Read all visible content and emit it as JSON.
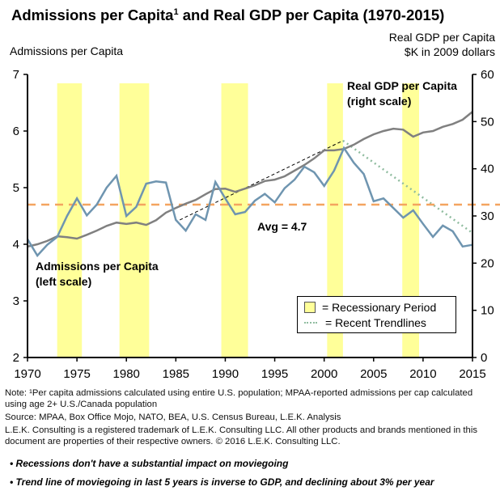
{
  "header": {
    "title_main": "Admissions per Capita",
    "title_sup": "1",
    "title_rest": " and Real GDP per Capita (1970-2015)",
    "left_axis_label": "Admissions per Capita",
    "right_axis_label_line1": "Real GDP per Capita",
    "right_axis_label_line2": "$K in 2009 dollars"
  },
  "chart_data": {
    "type": "line",
    "title": "Admissions per Capita1 and Real GDP per Capita (1970-2015)",
    "xlabel": "",
    "ylabel": "Admissions per Capita",
    "y2label": "Real GDP per Capita, $K in 2009 dollars",
    "xlim": [
      1970,
      2015
    ],
    "ylim": [
      2,
      7
    ],
    "y2lim": [
      0,
      60
    ],
    "x_ticks": [
      1970,
      1975,
      1980,
      1985,
      1990,
      1995,
      2000,
      2005,
      2010,
      2015
    ],
    "y_ticks": [
      2,
      3,
      4,
      5,
      6,
      7
    ],
    "y2_ticks": [
      0,
      10,
      20,
      30,
      40,
      50,
      60
    ],
    "grid": false,
    "x": [
      1970,
      1971,
      1972,
      1973,
      1974,
      1975,
      1976,
      1977,
      1978,
      1979,
      1980,
      1981,
      1982,
      1983,
      1984,
      1985,
      1986,
      1987,
      1988,
      1989,
      1990,
      1991,
      1992,
      1993,
      1994,
      1995,
      1996,
      1997,
      1998,
      1999,
      2000,
      2001,
      2002,
      2003,
      2004,
      2005,
      2006,
      2007,
      2008,
      2009,
      2010,
      2011,
      2012,
      2013,
      2014,
      2015
    ],
    "series": [
      {
        "name": "Admissions per Capita",
        "axis": "left",
        "color": "#6f95b0",
        "values": [
          4.09,
          3.8,
          3.99,
          4.13,
          4.5,
          4.81,
          4.51,
          4.7,
          5.0,
          5.21,
          4.5,
          4.66,
          5.07,
          5.11,
          5.09,
          4.43,
          4.24,
          4.53,
          4.43,
          5.1,
          4.81,
          4.53,
          4.57,
          4.77,
          4.89,
          4.74,
          4.99,
          5.14,
          5.37,
          5.27,
          5.03,
          5.3,
          5.7,
          5.44,
          5.24,
          4.76,
          4.81,
          4.64,
          4.47,
          4.6,
          4.36,
          4.13,
          4.33,
          4.23,
          3.96,
          3.99
        ]
      },
      {
        "name": "Real GDP per Capita",
        "axis": "right",
        "color": "#808080",
        "values": [
          23.5,
          24.0,
          24.7,
          25.7,
          25.5,
          25.2,
          26.0,
          26.9,
          27.9,
          28.6,
          28.3,
          28.6,
          28.1,
          29.1,
          30.7,
          31.7,
          32.6,
          33.4,
          34.6,
          35.7,
          35.8,
          35.1,
          35.8,
          36.5,
          37.4,
          37.7,
          38.4,
          39.6,
          40.8,
          42.2,
          43.9,
          43.9,
          44.2,
          45.1,
          46.3,
          47.3,
          48.0,
          48.5,
          48.3,
          46.8,
          47.7,
          48.0,
          48.9,
          49.5,
          50.4,
          52.1
        ]
      }
    ],
    "average_line": {
      "value": 4.7,
      "axis": "left",
      "color": "#f4a460",
      "label": "Avg = 4.7"
    },
    "trendlines": [
      {
        "name": "Earlier trendline",
        "axis": "left",
        "style": "dashed",
        "color": "#000000",
        "from": [
          1985.4,
          4.43
        ],
        "to": [
          2001.9,
          5.83
        ]
      },
      {
        "name": "Recent Trendlines",
        "axis": "left",
        "style": "dotted",
        "color": "#8fbc9f",
        "from": [
          2001.9,
          5.83
        ],
        "to": [
          2015,
          4.2
        ]
      }
    ],
    "recessions": [
      [
        1973.0,
        1975.5
      ],
      [
        1979.3,
        1982.3
      ],
      [
        1989.6,
        1992.3
      ],
      [
        2000.3,
        2001.9
      ],
      [
        2007.9,
        2009.6
      ]
    ],
    "recession_color": "#ffff99",
    "annotations": [
      {
        "text_line1": "Admissions per Capita",
        "text_line2": "(left scale)"
      },
      {
        "text_line1": "Real GDP per Capita",
        "text_line2": "(right scale)"
      },
      {
        "text_line1": "Avg = 4.7"
      }
    ]
  },
  "annotations": {
    "admissions_line1": "Admissions per Capita",
    "admissions_line2": "(left scale)",
    "gdp_line1": "Real GDP per Capita",
    "gdp_line2": "(right scale)",
    "avg": "Avg = 4.7"
  },
  "legend": {
    "recession_label": "= Recessionary Period",
    "trend_label": "=  Recent Trendlines"
  },
  "notes": {
    "note": "Note: ¹Per capita admissions calculated using entire U.S. population; MPAA-reported admissions per cap calculated using age 2+ U.S./Canada population",
    "source": "Source: MPAA, Box Office Mojo, NATO, BEA, U.S. Census Bureau, L.E.K. Analysis",
    "trademark": "L.E.K. Consulting is a registered trademark of L.E.K. Consulting LLC. All other products and brands mentioned in this document are properties of their respective owners. © 2016 L.E.K. Consulting LLC."
  },
  "bullets": [
    "• Recessions don't have a substantial impact on moviegoing",
    "• Trend line of moviegoing in last 5 years is inverse to GDP, and declining about 3% per year"
  ]
}
